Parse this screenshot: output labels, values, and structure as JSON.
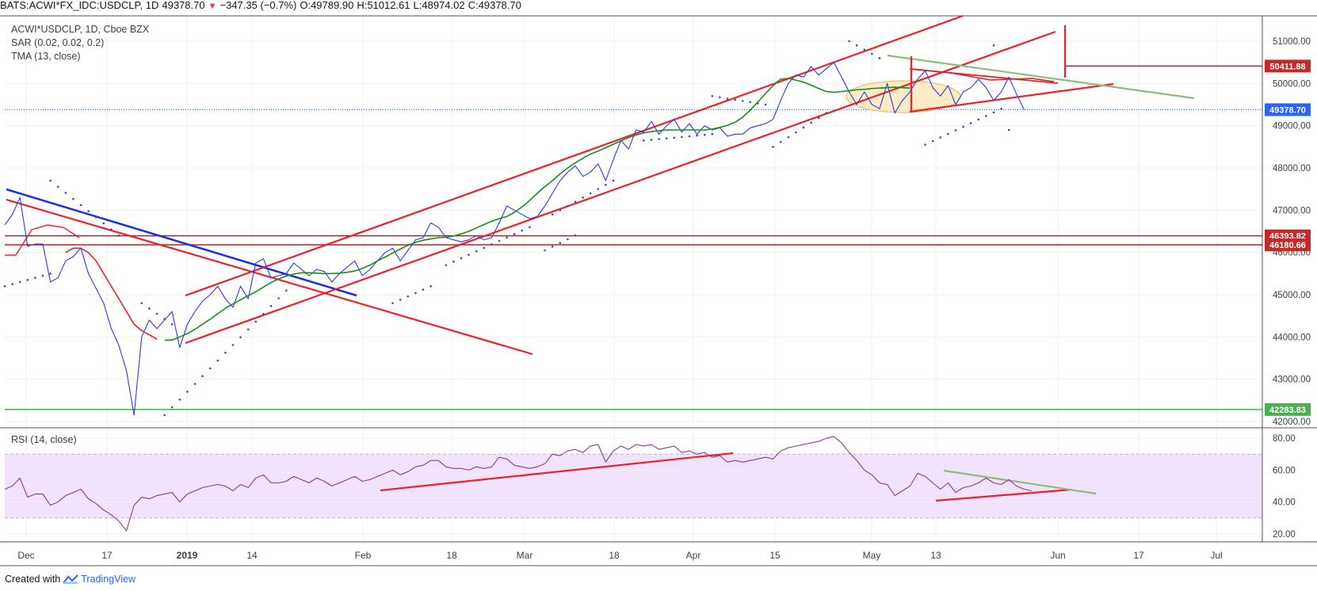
{
  "header": {
    "symbol": "BATS:ACWI*FX_IDC:USDCLP, 1D",
    "last": "49378.70",
    "change": "−347.35 (−0.7%)",
    "open_label": "O:",
    "open": "49789.90",
    "high_label": "H:",
    "high": "51012.61",
    "low_label": "L:",
    "low": "48974.02",
    "close_label": "C:",
    "close": "49378.70"
  },
  "legend": {
    "title": "ACWI*USDCLP, 1D, Cboe BZX",
    "sar": "SAR (0.02, 0.02, 0.2)",
    "tma": "TMA (13, close)",
    "rsi": "RSI (14, close)"
  },
  "footer": {
    "created_with": "Created with",
    "brand": "TradingView"
  },
  "colors": {
    "price": "#2d3be0",
    "tma": "#1c8c1c",
    "sar": "#3b47c8",
    "trend_red": "#f0202a",
    "trend_blue": "#1c2fe0",
    "trend_green": "#8fbc7a",
    "rsi_line": "#8b3a9c",
    "rsi_band": "#f1e3fb",
    "hline_dark": "#b52020",
    "support_green": "#4caf50"
  },
  "chart_data": {
    "type": "line",
    "title": "ACWI*USDCLP, 1D, Cboe BZX",
    "x_ticks": [
      "Dec",
      "17",
      "2019",
      "14",
      "Feb",
      "18",
      "Mar",
      "18",
      "Apr",
      "15",
      "May",
      "13",
      "Jun",
      "17",
      "Jul"
    ],
    "y_ticks": [
      "42000.00",
      "43000.00",
      "44000.00",
      "45000.00",
      "46000.00",
      "47000.00",
      "48000.00",
      "49000.00",
      "50000.00",
      "51000.00"
    ],
    "ylim": [
      41850,
      51600
    ],
    "price_labels": [
      {
        "value": 50411.88,
        "label": "50411.88",
        "color": "#c62828"
      },
      {
        "value": 49378.7,
        "label": "49378.70",
        "color": "#2962ff"
      },
      {
        "value": 46393.82,
        "label": "46393.82",
        "color": "#c62828"
      },
      {
        "value": 46180.66,
        "label": "46180.66",
        "color": "#c62828"
      },
      {
        "value": 42283.83,
        "label": "42283.83",
        "color": "#4caf50"
      }
    ],
    "series": [
      {
        "name": "ACWI*USDCLP",
        "values": [
          46650,
          46900,
          47300,
          46150,
          46200,
          46200,
          45300,
          45400,
          45800,
          45900,
          46100,
          45500,
          45150,
          44800,
          44200,
          43800,
          43200,
          42150,
          44000,
          44400,
          44200,
          44400,
          44600,
          43750,
          44300,
          44600,
          44850,
          45000,
          45200,
          44900,
          44700,
          45200,
          44900,
          45750,
          45850,
          45400,
          45450,
          45500,
          45750,
          45600,
          45450,
          45600,
          45550,
          45300,
          45500,
          45650,
          45800,
          45450,
          45600,
          45800,
          46000,
          46100,
          45800,
          46050,
          46300,
          46350,
          46700,
          46600,
          46350,
          46300,
          46250,
          46300,
          46400,
          46300,
          46350,
          46700,
          47100,
          47000,
          46900,
          46800,
          46850,
          47100,
          47400,
          47700,
          47900,
          48050,
          47800,
          47900,
          48100,
          47700,
          48200,
          48650,
          48450,
          48900,
          48850,
          49100,
          48800,
          49000,
          49150,
          48850,
          49050,
          48800,
          49000,
          48900,
          48950,
          48750,
          48800,
          48800,
          48950,
          49000,
          49050,
          49150,
          49600,
          50000,
          50200,
          50150,
          50400,
          50200,
          50350,
          50500,
          50150,
          49800,
          49500,
          49800,
          49500,
          49400,
          50000,
          49300,
          49600,
          49800,
          50100,
          50300,
          49900,
          49700,
          49950,
          49500,
          49800,
          49900,
          50100,
          49900,
          49600,
          49800,
          50150,
          49750,
          49378.7
        ]
      },
      {
        "name": "TMA (13, close)",
        "values": [
          null,
          null,
          null,
          null,
          null,
          null,
          null,
          null,
          null,
          null,
          null,
          null,
          null,
          null,
          null,
          null,
          null,
          null,
          null,
          null,
          null,
          43920,
          43930,
          44000,
          44080,
          44180,
          44300,
          44420,
          44550,
          44680,
          44780,
          44880,
          44980,
          45070,
          45180,
          45290,
          45370,
          45440,
          45490,
          45520,
          45520,
          45510,
          45500,
          45500,
          45510,
          45530,
          45560,
          45620,
          45700,
          45800,
          45890,
          45990,
          46080,
          46170,
          46240,
          46290,
          46320,
          46350,
          46360,
          46390,
          46440,
          46500,
          46580,
          46660,
          46740,
          46800,
          46850,
          46950,
          47080,
          47230,
          47400,
          47560,
          47700,
          47860,
          48000,
          48120,
          48230,
          48330,
          48400,
          48480,
          48560,
          48640,
          48720,
          48780,
          48830,
          48860,
          48880,
          48900,
          48900,
          48900,
          48900,
          48900,
          48900,
          48920,
          48960,
          49010,
          49080,
          49200,
          49370,
          49560,
          49760,
          49950,
          50100,
          50120,
          50080,
          50030,
          49960,
          49880,
          49810,
          49790,
          49810,
          49830,
          49850,
          49860,
          49880,
          49890,
          49900,
          49910,
          49900,
          49890
        ]
      },
      {
        "name": "RSI (14, close)",
        "values": [
          48,
          50,
          55,
          43,
          45,
          45,
          38,
          40,
          44,
          46,
          48,
          42,
          39,
          35,
          32,
          28,
          22,
          38,
          43,
          42,
          44,
          45,
          46,
          40,
          45,
          47,
          49,
          50,
          51,
          50,
          47,
          51,
          49,
          55,
          57,
          52,
          52,
          53,
          56,
          54,
          52,
          55,
          53,
          50,
          52,
          54,
          56,
          53,
          54,
          56,
          58,
          60,
          57,
          59,
          62,
          63,
          66,
          66,
          62,
          61,
          61,
          60,
          62,
          61,
          62,
          68,
          67,
          63,
          62,
          61,
          62,
          64,
          70,
          69,
          72,
          73,
          71,
          75,
          76,
          65,
          72,
          75,
          73,
          76,
          75,
          76,
          73,
          74,
          75,
          71,
          72,
          70,
          71,
          68,
          69,
          65,
          66,
          65,
          66,
          67,
          68,
          67,
          72,
          74,
          75,
          76,
          77,
          78,
          80,
          81,
          77,
          71,
          66,
          60,
          57,
          52,
          51,
          44,
          47,
          50,
          58,
          56,
          52,
          48,
          52,
          46,
          49,
          50,
          52,
          55,
          52,
          51,
          54,
          50,
          48,
          47
        ]
      }
    ]
  }
}
